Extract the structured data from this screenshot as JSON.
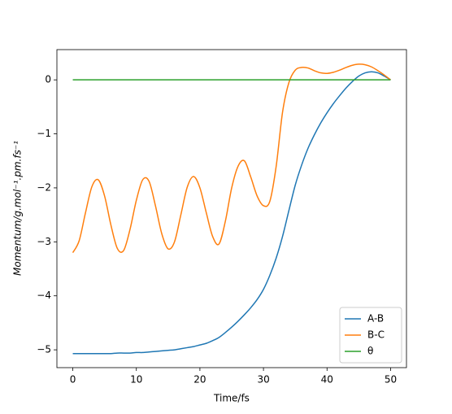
{
  "chart_data": {
    "type": "line",
    "xlabel": "Time/fs",
    "ylabel": "Momentum/g.mol⁻¹.pm.fs⁻¹",
    "x": [
      0,
      1,
      2,
      3,
      4,
      5,
      6,
      7,
      8,
      9,
      10,
      11,
      12,
      13,
      14,
      15,
      16,
      17,
      18,
      19,
      20,
      21,
      22,
      23,
      24,
      25,
      26,
      27,
      28,
      29,
      30,
      31,
      32,
      33,
      34,
      35,
      36,
      37,
      38,
      39,
      40,
      41,
      42,
      43,
      44,
      45,
      46,
      47,
      48,
      49,
      50
    ],
    "series": [
      {
        "name": "A-B",
        "color": "#1f77b4",
        "values": [
          -5.07,
          -5.07,
          -5.07,
          -5.07,
          -5.07,
          -5.07,
          -5.07,
          -5.06,
          -5.06,
          -5.06,
          -5.05,
          -5.05,
          -5.04,
          -5.03,
          -5.02,
          -5.01,
          -5.0,
          -4.98,
          -4.96,
          -4.94,
          -4.91,
          -4.88,
          -4.83,
          -4.77,
          -4.68,
          -4.58,
          -4.47,
          -4.35,
          -4.22,
          -4.07,
          -3.88,
          -3.62,
          -3.3,
          -2.9,
          -2.42,
          -1.95,
          -1.58,
          -1.27,
          -1.02,
          -0.8,
          -0.61,
          -0.44,
          -0.29,
          -0.15,
          -0.03,
          0.07,
          0.13,
          0.15,
          0.13,
          0.07,
          0
        ]
      },
      {
        "name": "B-C",
        "color": "#ff7f0e",
        "values": [
          -3.2,
          -2.98,
          -2.46,
          -1.98,
          -1.85,
          -2.15,
          -2.69,
          -3.12,
          -3.16,
          -2.77,
          -2.23,
          -1.85,
          -1.88,
          -2.33,
          -2.85,
          -3.13,
          -3.0,
          -2.5,
          -1.99,
          -1.79,
          -2.0,
          -2.46,
          -2.9,
          -3.04,
          -2.62,
          -2.0,
          -1.6,
          -1.5,
          -1.8,
          -2.15,
          -2.33,
          -2.25,
          -1.6,
          -0.6,
          -0.05,
          0.18,
          0.23,
          0.22,
          0.17,
          0.13,
          0.12,
          0.14,
          0.18,
          0.23,
          0.27,
          0.29,
          0.28,
          0.24,
          0.17,
          0.09,
          0
        ]
      },
      {
        "name": "θ",
        "color": "#2ca02c",
        "values": [
          0,
          0,
          0,
          0,
          0,
          0,
          0,
          0,
          0,
          0,
          0,
          0,
          0,
          0,
          0,
          0,
          0,
          0,
          0,
          0,
          0,
          0,
          0,
          0,
          0,
          0,
          0,
          0,
          0,
          0,
          0,
          0,
          0,
          0,
          0,
          0,
          0,
          0,
          0,
          0,
          0,
          0,
          0,
          0,
          0,
          0,
          0,
          0,
          0,
          0,
          0
        ]
      }
    ],
    "xlim": [
      -2.5,
      52.5
    ],
    "xticks": [
      0,
      10,
      20,
      30,
      40,
      50
    ],
    "ylim": [
      -5.33,
      0.56
    ],
    "yticks": [
      {
        "value": -5,
        "label": "−5"
      },
      {
        "value": -4,
        "label": "−4"
      },
      {
        "value": -3,
        "label": "−3"
      },
      {
        "value": -2,
        "label": "−2"
      },
      {
        "value": -1,
        "label": "−1"
      },
      0
    ],
    "grid": false,
    "legend": "lower right"
  }
}
